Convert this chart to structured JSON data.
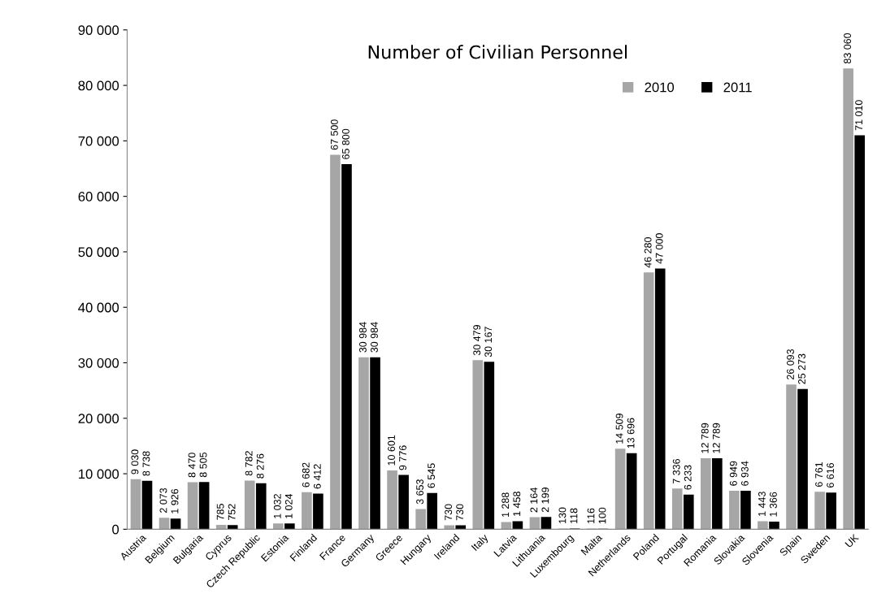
{
  "chart_data": {
    "type": "bar",
    "title": "Number of Civilian Personnel",
    "categories": [
      "Austria",
      "Belgium",
      "Bulgaria",
      "Cyprus",
      "Czech Republic",
      "Estonia",
      "Finland",
      "France",
      "Germany",
      "Greece",
      "Hungary",
      "Ireland",
      "Italy",
      "Latvia",
      "Lithuania",
      "Luxembourg",
      "Malta",
      "Netherlands",
      "Poland",
      "Portugal",
      "Romania",
      "Slovakia",
      "Slovenia",
      "Spain",
      "Sweden",
      "UK"
    ],
    "series": [
      {
        "name": "2010",
        "color": "#a6a6a6",
        "values": [
          9030,
          2073,
          8470,
          785,
          8782,
          1032,
          6682,
          67500,
          30984,
          10601,
          3653,
          730,
          30479,
          1288,
          2164,
          130,
          116,
          14509,
          46280,
          7336,
          12789,
          6949,
          1443,
          26093,
          6761,
          83060
        ],
        "value_labels": [
          "9 030",
          "2 073",
          "8 470",
          "785",
          "8 782",
          "1 032",
          "6 682",
          "67 500",
          "30 984",
          "10 601",
          "3 653",
          "730",
          "30 479",
          "1 288",
          "2 164",
          "130",
          "116",
          "14 509",
          "46 280",
          "7 336",
          "12 789",
          "6 949",
          "1 443",
          "26 093",
          "6 761",
          "83 060"
        ]
      },
      {
        "name": "2011",
        "color": "#000000",
        "values": [
          8738,
          1926,
          8505,
          752,
          8276,
          1024,
          6412,
          65800,
          30984,
          9776,
          6545,
          730,
          30167,
          1458,
          2199,
          118,
          100,
          13696,
          47000,
          6233,
          12789,
          6934,
          1366,
          25273,
          6616,
          71010
        ],
        "value_labels": [
          "8 738",
          "1 926",
          "8 505",
          "752",
          "8 276",
          "1 024",
          "6 412",
          "65 800",
          "30 984",
          "9 776",
          "6 545",
          "730",
          "30 167",
          "1 458",
          "2 199",
          "118",
          "100",
          "13 696",
          "47 000",
          "6 233",
          "12 789",
          "6 934",
          "1 366",
          "25 273",
          "6 616",
          "71 010"
        ]
      }
    ],
    "ylim": [
      0,
      90000
    ],
    "yticks": [
      {
        "value": 0,
        "label": "0"
      },
      {
        "value": 10000,
        "label": "10 000"
      },
      {
        "value": 20000,
        "label": "20 000"
      },
      {
        "value": 30000,
        "label": "30 000"
      },
      {
        "value": 40000,
        "label": "40 000"
      },
      {
        "value": 50000,
        "label": "50 000"
      },
      {
        "value": 60000,
        "label": "60 000"
      },
      {
        "value": 70000,
        "label": "70 000"
      },
      {
        "value": 80000,
        "label": "80 000"
      },
      {
        "value": 90000,
        "label": "90 000"
      }
    ],
    "grid": false,
    "legend": "top right"
  }
}
